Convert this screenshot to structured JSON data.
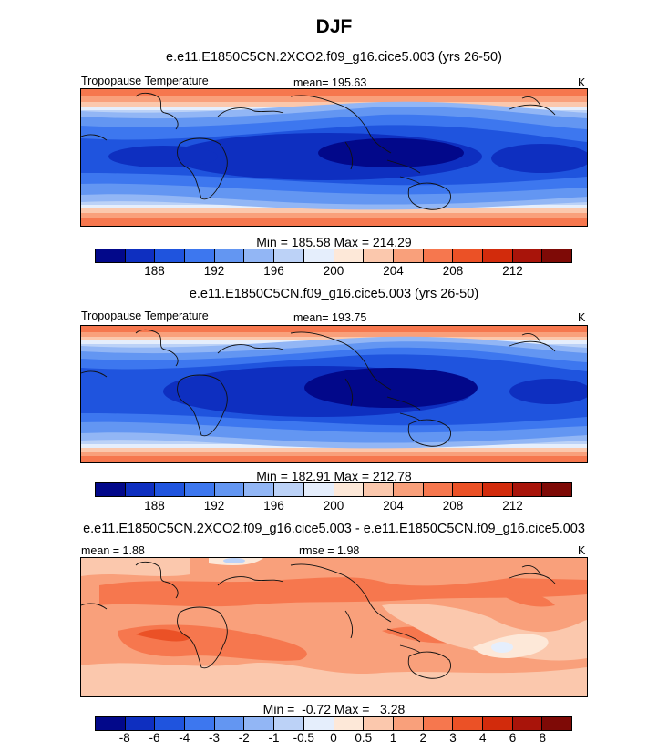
{
  "title": "DJF",
  "panels": [
    {
      "title": "e.e11.E1850C5CN.2XCO2.f09_g16.cice5.003 (yrs 26-50)",
      "left_label": "Tropopause Temperature",
      "center_label": "mean= 195.63",
      "units": "K",
      "stats": "Min = 185.58 Max = 214.29"
    },
    {
      "title": "e.e11.E1850C5CN.f09_g16.cice5.003 (yrs 26-50)",
      "left_label": "Tropopause Temperature",
      "center_label": "mean= 193.75",
      "units": "K",
      "stats": "Min = 182.91 Max = 212.78"
    },
    {
      "title": "e.e11.E1850C5CN.2XCO2.f09_g16.cice5.003 - e.e11.E1850C5CN.f09_g16.cice5.003",
      "left_label": "mean =   1.88",
      "center_label": "rmse =   1.98",
      "units": "K",
      "stats": "Min =  -0.72 Max =   3.28"
    }
  ],
  "colorbar_colors": [
    "#02088a",
    "#0e2fc0",
    "#1f54de",
    "#3d77ef",
    "#6396f2",
    "#92b6f5",
    "#bcd2f7",
    "#e5eefc",
    "#fde8d8",
    "#fbc8ad",
    "#f9a07b",
    "#f6774e",
    "#eb5126",
    "#d22b0c",
    "#a8140a",
    "#7e0a06"
  ],
  "chart_data": [
    {
      "type": "heatmap",
      "title": "e.e11.E1850C5CN.2XCO2.f09_g16.cice5.003 (yrs 26-50)",
      "variable": "Tropopause Temperature",
      "units": "K",
      "mean": 195.63,
      "min": 185.58,
      "max": 214.29,
      "colorbar_ticks": [
        "188",
        "192",
        "196",
        "200",
        "204",
        "208",
        "212"
      ],
      "contour_levels": [
        186,
        188,
        190,
        192,
        194,
        196,
        198,
        200,
        202,
        204,
        206,
        208,
        210,
        212,
        214
      ]
    },
    {
      "type": "heatmap",
      "title": "e.e11.E1850C5CN.f09_g16.cice5.003 (yrs 26-50)",
      "variable": "Tropopause Temperature",
      "units": "K",
      "mean": 193.75,
      "min": 182.91,
      "max": 212.78,
      "colorbar_ticks": [
        "188",
        "192",
        "196",
        "200",
        "204",
        "208",
        "212"
      ],
      "contour_levels": [
        186,
        188,
        190,
        192,
        194,
        196,
        198,
        200,
        202,
        204,
        206,
        208,
        210,
        212,
        214
      ]
    },
    {
      "type": "heatmap",
      "title": "e.e11.E1850C5CN.2XCO2.f09_g16.cice5.003 - e.e11.E1850C5CN.f09_g16.cice5.003",
      "units": "K",
      "mean": 1.88,
      "rmse": 1.98,
      "min": -0.72,
      "max": 3.28,
      "colorbar_ticks": [
        "-8",
        "-6",
        "-4",
        "-3",
        "-2",
        "-1",
        "-0.5",
        "0",
        "0.5",
        "1",
        "2",
        "3",
        "4",
        "6",
        "8"
      ],
      "contour_levels": [
        -8,
        -6,
        -4,
        -3,
        -2,
        -1,
        -0.5,
        0,
        0.5,
        1,
        2,
        3,
        4,
        6,
        8
      ]
    }
  ]
}
